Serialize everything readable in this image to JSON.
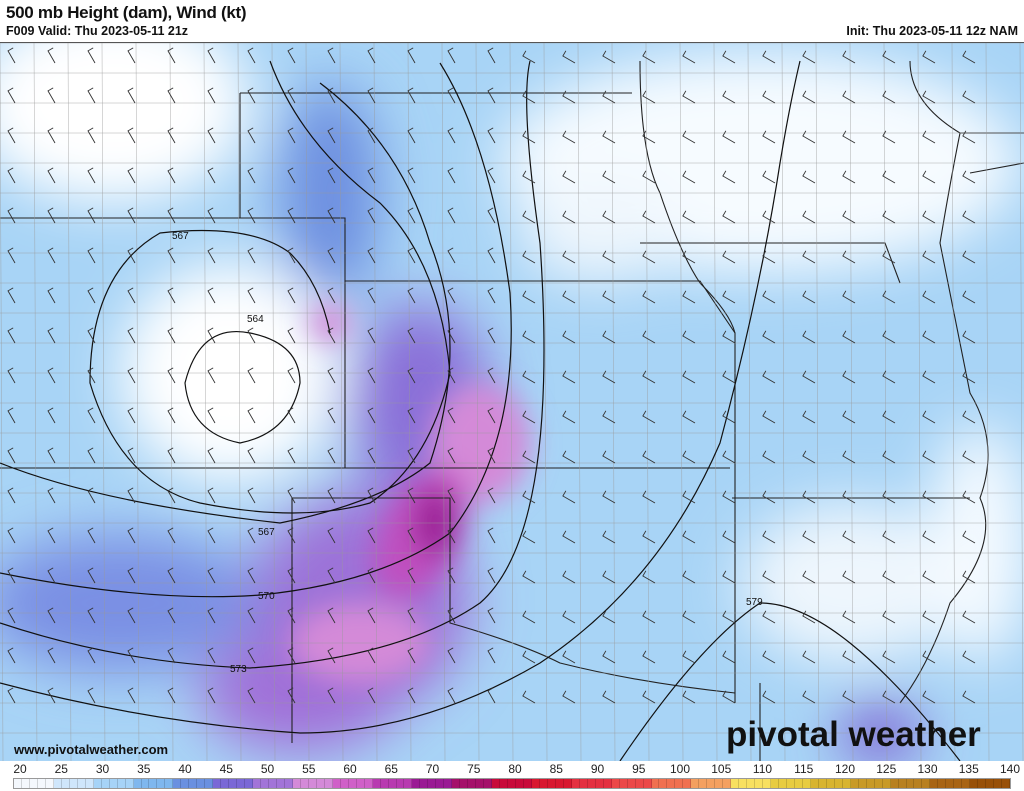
{
  "header": {
    "title": "500 mb Height (dam), Wind (kt)",
    "valid": "F009 Valid: Thu 2023-05-11 21z",
    "init": "Init: Thu 2023-05-11 12z NAM"
  },
  "contour_labels": [
    "567",
    "564",
    "567",
    "570",
    "573",
    "579"
  ],
  "footer": {
    "website": "www.pivotalweather.com",
    "logo": "pivotal weather"
  },
  "colorbar": {
    "ticks": [
      "20",
      "25",
      "30",
      "35",
      "40",
      "45",
      "50",
      "55",
      "60",
      "65",
      "70",
      "75",
      "80",
      "85",
      "90",
      "95",
      "100",
      "105",
      "110",
      "115",
      "120",
      "125",
      "130",
      "135",
      "140"
    ],
    "colors": [
      "#f4f8fd",
      "#cfe6fb",
      "#a6d3f7",
      "#7fb7ee",
      "#6a90e0",
      "#7a68d6",
      "#a274d8",
      "#d48ad8",
      "#d060c8",
      "#b83ab0",
      "#9a1a94",
      "#a5106a",
      "#c80a3a",
      "#d81830",
      "#e43040",
      "#ec4848",
      "#f07050",
      "#f4a060",
      "#f8e060",
      "#e8cc40",
      "#d8b430",
      "#c89a28",
      "#b88020",
      "#a86414",
      "#985008"
    ]
  },
  "wind_units": "kt"
}
